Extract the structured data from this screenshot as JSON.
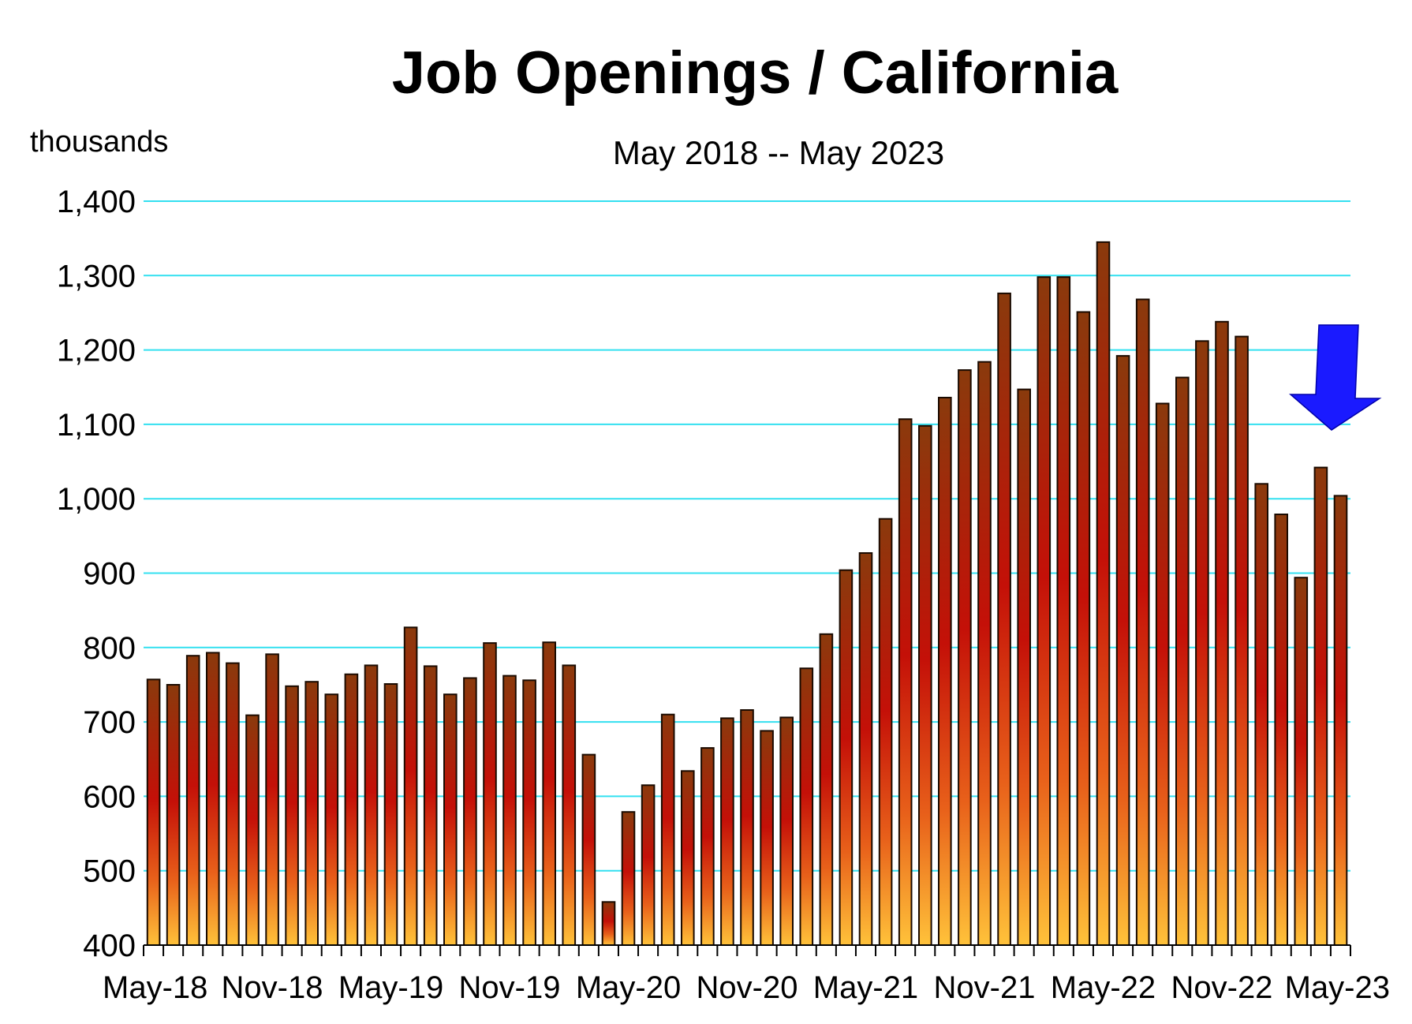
{
  "chart_data": {
    "type": "bar",
    "title": "Job Openings / California",
    "subtitle": "May 2018 -- May 2023",
    "ylabel": "thousands",
    "ylim": [
      400,
      1400
    ],
    "yticks": [
      "400",
      "500",
      "600",
      "700",
      "800",
      "900",
      "1,000",
      "1,100",
      "1,200",
      "1,300",
      "1,400"
    ],
    "xtick_labels": [
      "May-18",
      "Nov-18",
      "May-19",
      "Nov-19",
      "May-20",
      "Nov-20",
      "May-21",
      "Nov-21",
      "May-22",
      "Nov-22",
      "May-23"
    ],
    "categories": [
      "May-18",
      "Jun-18",
      "Jul-18",
      "Aug-18",
      "Sep-18",
      "Oct-18",
      "Nov-18",
      "Dec-18",
      "Jan-19",
      "Feb-19",
      "Mar-19",
      "Apr-19",
      "May-19",
      "Jun-19",
      "Jul-19",
      "Aug-19",
      "Sep-19",
      "Oct-19",
      "Nov-19",
      "Dec-19",
      "Jan-20",
      "Feb-20",
      "Mar-20",
      "Apr-20",
      "May-20",
      "Jun-20",
      "Jul-20",
      "Aug-20",
      "Sep-20",
      "Oct-20",
      "Nov-20",
      "Dec-20",
      "Jan-21",
      "Feb-21",
      "Mar-21",
      "Apr-21",
      "May-21",
      "Jun-21",
      "Jul-21",
      "Aug-21",
      "Sep-21",
      "Oct-21",
      "Nov-21",
      "Dec-21",
      "Jan-22",
      "Feb-22",
      "Mar-22",
      "Apr-22",
      "May-22",
      "Jun-22",
      "Jul-22",
      "Aug-22",
      "Sep-22",
      "Oct-22",
      "Nov-22",
      "Dec-22",
      "Jan-23",
      "Feb-23",
      "Mar-23",
      "Apr-23",
      "May-23"
    ],
    "values": [
      757,
      750,
      789,
      793,
      779,
      709,
      791,
      748,
      754,
      737,
      764,
      776,
      751,
      827,
      775,
      737,
      759,
      806,
      762,
      756,
      807,
      776,
      656,
      458,
      579,
      615,
      710,
      634,
      665,
      705,
      716,
      688,
      706,
      772,
      818,
      904,
      927,
      973,
      1107,
      1098,
      1136,
      1173,
      1184,
      1276,
      1147,
      1298,
      1298,
      1251,
      1345,
      1192,
      1268,
      1128,
      1163,
      1212,
      1238,
      1218,
      1020,
      979,
      894,
      1042,
      1004
    ],
    "grid": true,
    "legend": "none",
    "colors": {
      "bar_top": "#8a3a0c",
      "bar_mid": "#c41008",
      "bar_bottom": "#ffc23a",
      "grid": "#33e0f0",
      "arrow": "#1a1aff"
    }
  }
}
